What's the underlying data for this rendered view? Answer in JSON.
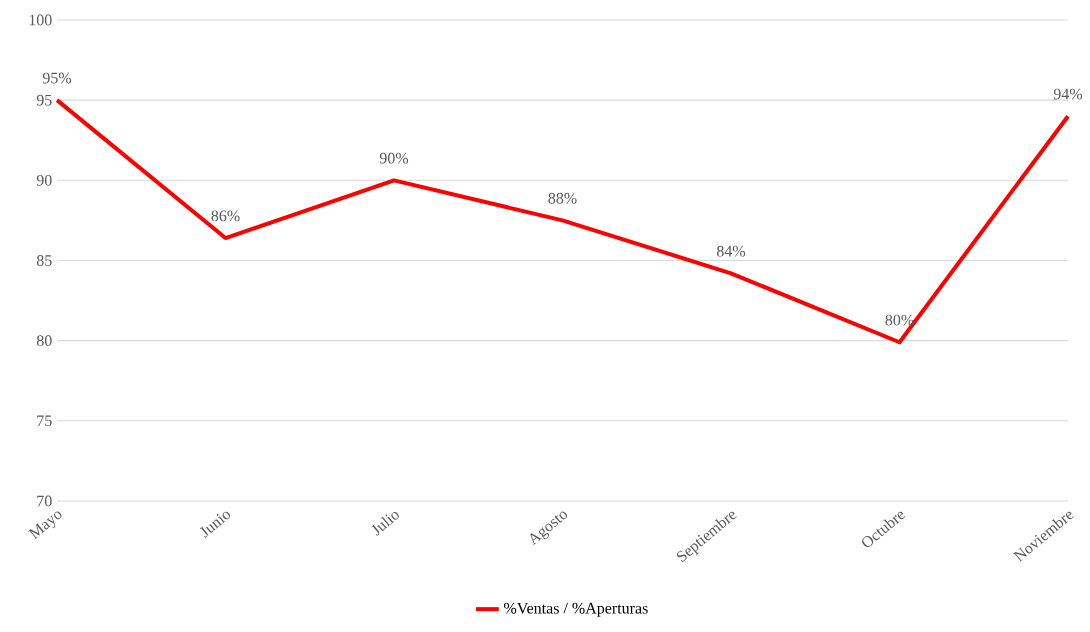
{
  "chart_data": {
    "type": "line",
    "categories": [
      "Mayo",
      "Junio",
      "Julio",
      "Agosto",
      "Septiembre",
      "Octubre",
      "Noviembre"
    ],
    "series": [
      {
        "name": "%Ventas / %Aperturas",
        "color": "#ff0000",
        "values": [
          95,
          86.4,
          90,
          87.5,
          84.2,
          79.9,
          94.0
        ],
        "value_labels": [
          "95%",
          "86%",
          "90%",
          "88%",
          "84%",
          "80%",
          "94%"
        ]
      }
    ],
    "ylim": [
      70,
      100
    ],
    "yticks": [
      70,
      75,
      80,
      85,
      90,
      95,
      100
    ],
    "grid": "y",
    "legend": "bottom",
    "marker": "none",
    "line_style": "solid"
  }
}
